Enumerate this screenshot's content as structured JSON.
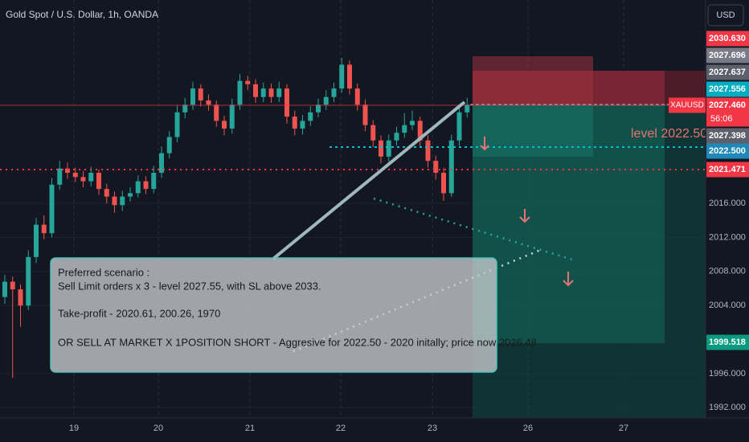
{
  "header": {
    "title": "Gold Spot / U.S. Dollar, 1h, OANDA",
    "currency": "USD"
  },
  "chart_data": {
    "type": "candlestick",
    "candles": [
      [
        2005.0,
        2007.6,
        2004.2,
        2006.8
      ],
      [
        2006.8,
        2007.4,
        1995.5,
        2005.9
      ],
      [
        2005.9,
        2006.5,
        2001.5,
        2004.0
      ],
      [
        2004.0,
        2010.5,
        2003.5,
        2009.7
      ],
      [
        2009.7,
        2014.3,
        2009.0,
        2013.5
      ],
      [
        2013.5,
        2014.6,
        2011.8,
        2012.5
      ],
      [
        2012.5,
        2019.0,
        2012.0,
        2018.2
      ],
      [
        2018.2,
        2021.0,
        2017.6,
        2020.1
      ],
      [
        2020.1,
        2020.8,
        2018.9,
        2019.6
      ],
      [
        2019.6,
        2020.2,
        2018.5,
        2019.1
      ],
      [
        2019.1,
        2019.8,
        2017.9,
        2018.6
      ],
      [
        2018.6,
        2020.3,
        2018.0,
        2019.6
      ],
      [
        2019.6,
        2020.0,
        2017.0,
        2017.7
      ],
      [
        2017.7,
        2018.3,
        2016.0,
        2016.8
      ],
      [
        2016.8,
        2017.4,
        2014.9,
        2015.8
      ],
      [
        2015.8,
        2017.5,
        2015.1,
        2016.8
      ],
      [
        2016.8,
        2017.9,
        2016.2,
        2017.2
      ],
      [
        2017.2,
        2019.3,
        2016.7,
        2018.6
      ],
      [
        2018.6,
        2019.2,
        2017.1,
        2017.7
      ],
      [
        2017.7,
        2020.4,
        2017.2,
        2019.6
      ],
      [
        2019.6,
        2022.7,
        2019.0,
        2021.9
      ],
      [
        2021.9,
        2024.5,
        2021.3,
        2023.8
      ],
      [
        2023.8,
        2027.5,
        2023.2,
        2026.7
      ],
      [
        2026.7,
        2028.4,
        2026.0,
        2027.6
      ],
      [
        2027.6,
        2030.3,
        2027.0,
        2029.5
      ],
      [
        2029.5,
        2030.0,
        2027.4,
        2028.1
      ],
      [
        2028.1,
        2028.8,
        2026.9,
        2027.6
      ],
      [
        2027.6,
        2028.1,
        2025.0,
        2025.7
      ],
      [
        2025.7,
        2026.3,
        2024.0,
        2024.8
      ],
      [
        2024.8,
        2028.3,
        2024.2,
        2027.6
      ],
      [
        2027.6,
        2031.2,
        2027.0,
        2030.4
      ],
      [
        2030.4,
        2031.0,
        2029.3,
        2030.0
      ],
      [
        2030.0,
        2030.6,
        2027.8,
        2028.5
      ],
      [
        2028.5,
        2030.2,
        2027.9,
        2029.5
      ],
      [
        2029.5,
        2030.1,
        2027.8,
        2028.5
      ],
      [
        2028.5,
        2030.3,
        2027.9,
        2029.5
      ],
      [
        2029.5,
        2030.0,
        2025.4,
        2026.2
      ],
      [
        2026.2,
        2026.9,
        2024.0,
        2024.8
      ],
      [
        2024.8,
        2026.4,
        2024.1,
        2025.7
      ],
      [
        2025.7,
        2027.4,
        2025.1,
        2026.7
      ],
      [
        2026.7,
        2028.3,
        2026.1,
        2027.6
      ],
      [
        2027.6,
        2029.3,
        2027.0,
        2028.5
      ],
      [
        2028.5,
        2030.2,
        2027.9,
        2029.5
      ],
      [
        2029.5,
        2033.1,
        2029.0,
        2032.3
      ],
      [
        2032.3,
        2032.8,
        2028.8,
        2029.5
      ],
      [
        2029.5,
        2030.1,
        2026.9,
        2027.6
      ],
      [
        2027.6,
        2028.2,
        2024.5,
        2025.2
      ],
      [
        2025.2,
        2025.8,
        2022.6,
        2023.4
      ],
      [
        2023.4,
        2024.0,
        2020.7,
        2021.5
      ],
      [
        2021.5,
        2024.1,
        2020.9,
        2023.4
      ],
      [
        2023.4,
        2025.0,
        2022.8,
        2024.3
      ],
      [
        2024.3,
        2026.6,
        2023.7,
        2025.2
      ],
      [
        2025.2,
        2026.9,
        2024.6,
        2025.7
      ],
      [
        2025.7,
        2026.2,
        2022.6,
        2023.4
      ],
      [
        2023.4,
        2024.0,
        2020.2,
        2021.0
      ],
      [
        2021.0,
        2021.6,
        2018.8,
        2019.6
      ],
      [
        2019.6,
        2020.2,
        2016.3,
        2017.2
      ],
      [
        2017.2,
        2024.1,
        2016.8,
        2023.4
      ],
      [
        2023.4,
        2027.4,
        2022.8,
        2026.7
      ],
      [
        2026.7,
        2028.4,
        2026.1,
        2027.6
      ]
    ],
    "ylim": [
      1990.8,
      2039.9
    ],
    "yticks": [
      {
        "value": 2016,
        "label": "2016.000"
      },
      {
        "value": 2012,
        "label": "2012.000"
      },
      {
        "value": 2008,
        "label": "2008.000"
      },
      {
        "value": 2004,
        "label": "2004.000"
      },
      {
        "value": 1996,
        "label": "1996.000"
      },
      {
        "value": 1992,
        "label": "1992.000"
      }
    ],
    "up_color": "#26a69a",
    "down_color": "#ef5350"
  },
  "date_labels": [
    "19",
    "20",
    "21",
    "22",
    "23",
    "26",
    "27"
  ],
  "price_tags": [
    {
      "label": "2030.630",
      "bg": "#f23645"
    },
    {
      "label": "2027.696",
      "bg": "#787b86"
    },
    {
      "label": "2027.637",
      "bg": "#5d606b"
    },
    {
      "label": "2027.556",
      "bg": "#00acc1"
    },
    {
      "label": "2027.460",
      "bg": "#f23645"
    },
    {
      "label": "2027.398",
      "bg": "#5d606b"
    },
    {
      "label": "2022.500",
      "bg": "#1e88b8"
    },
    {
      "label": "2021.471",
      "bg": "#f23645"
    },
    {
      "label": "1999.518",
      "bg": "#089981"
    }
  ],
  "symbol_tag": {
    "symbol": "XAUUSD",
    "countdown": "56:06"
  },
  "level_label": "level 2022.50",
  "note": {
    "lines": [
      "Preferred scenario :",
      "Sell Limit orders x 3 - level 2027.55, with SL above 2033.",
      "Take-profit - 2020.61, 200.26, 1970",
      "OR SELL AT MARKET X 1POSITION SHORT - Aggresive for 2022.50 - 2020 initally; price now 2026.48"
    ]
  }
}
